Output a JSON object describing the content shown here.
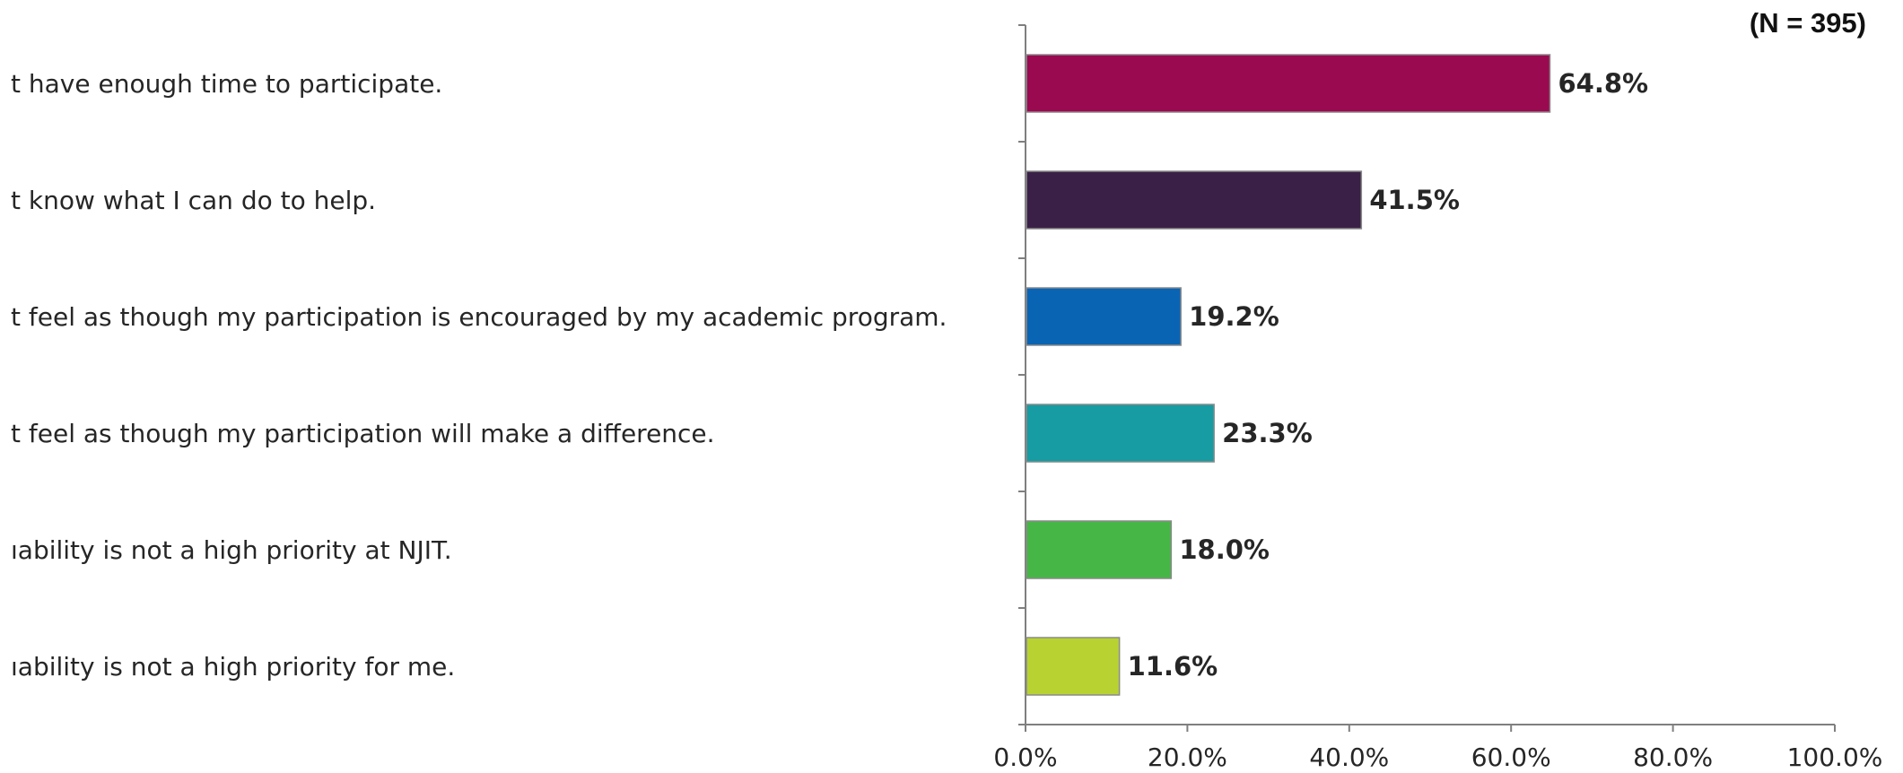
{
  "note": "(N = 395)",
  "chart_data": {
    "type": "bar",
    "orientation": "horizontal",
    "categories": [
      "t have enough time to participate.",
      "t know what I can do to help.",
      "t feel as though my participation is encouraged by my academic program.",
      "t feel as though my participation will make a difference.",
      "ıability is not a high priority at NJIT.",
      "ıability is not a high priority for me."
    ],
    "values": [
      64.8,
      41.5,
      19.2,
      23.3,
      18.0,
      11.6
    ],
    "value_labels": [
      "64.8%",
      "41.5%",
      "19.2%",
      "23.3%",
      "18.0%",
      "11.6%"
    ],
    "colors": [
      "#9a0a50",
      "#3a2046",
      "#0a64b4",
      "#169ca2",
      "#46b646",
      "#b8d232"
    ],
    "xlim": [
      0,
      100
    ],
    "x_ticks": [
      0,
      20,
      40,
      60,
      80,
      100
    ],
    "x_tick_labels": [
      "0.0%",
      "20.0%",
      "40.0%",
      "60.0%",
      "80.0%",
      "100.0%"
    ],
    "grid": false,
    "legend": "none"
  }
}
